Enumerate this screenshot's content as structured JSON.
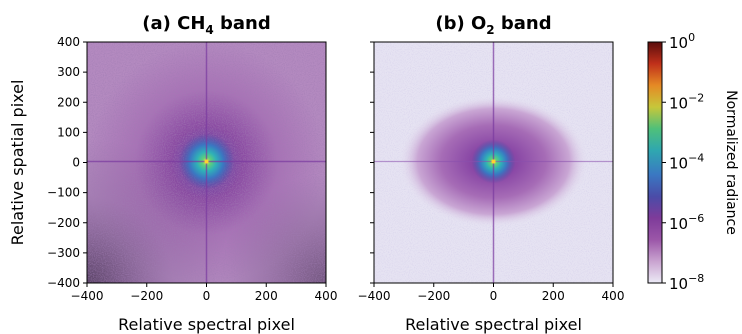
{
  "chart_data": [
    {
      "type": "heatmap",
      "title": "(a) CH4 band",
      "title_parts": {
        "prefix": "(a) CH",
        "sub": "4",
        "suffix": " band"
      },
      "xlabel": "Relative spectral pixel",
      "ylabel": "Relative spatial pixel",
      "xlim": [
        -400,
        400
      ],
      "ylim": [
        -400,
        400
      ],
      "xticks": [
        -400,
        -200,
        0,
        200,
        400
      ],
      "xtick_labels": [
        "−400",
        "−200",
        "0",
        "200",
        "400"
      ],
      "yticks": [
        400,
        300,
        200,
        100,
        0,
        -100,
        -200,
        -300,
        -400
      ],
      "ytick_labels": [
        "400",
        "300",
        "200",
        "100",
        "0",
        "−100",
        "−200",
        "−300",
        "−400"
      ],
      "colorscale": "log",
      "peak_value": 1,
      "background_value": 1e-08,
      "halo_extent": "broad, fills panel"
    },
    {
      "type": "heatmap",
      "title": "(b) O2 band",
      "title_parts": {
        "prefix": "(b) O",
        "sub": "2",
        "suffix": " band"
      },
      "xlabel": "Relative spectral pixel",
      "xlim": [
        -400,
        400
      ],
      "ylim": [
        -400,
        400
      ],
      "xticks": [
        -400,
        -200,
        0,
        200,
        400
      ],
      "xtick_labels": [
        "−400",
        "−200",
        "0",
        "200",
        "400"
      ],
      "yticks": [
        400,
        300,
        200,
        100,
        0,
        -100,
        -200,
        -300,
        -400
      ],
      "colorscale": "log",
      "peak_value": 1,
      "background_value": 1e-08,
      "halo_extent": "elliptical, ~±300 spectral, ~±200 spatial"
    }
  ],
  "colorbar": {
    "label": "Normalized radiance",
    "scale": "log",
    "range": [
      1e-08,
      1
    ],
    "ticks": [
      {
        "value": 1,
        "base": "10",
        "exp": "0"
      },
      {
        "value": 0.01,
        "base": "10",
        "exp": "−2"
      },
      {
        "value": 0.0001,
        "base": "10",
        "exp": "−4"
      },
      {
        "value": 1e-06,
        "base": "10",
        "exp": "−6"
      },
      {
        "value": 1e-08,
        "base": "10",
        "exp": "−8"
      }
    ],
    "colormap_stops": [
      "#ecebf6",
      "#c9a3d0",
      "#9b56a8",
      "#7e3b9a",
      "#4a4ca8",
      "#3a78c2",
      "#2fa7b0",
      "#4fc07a",
      "#c7c73a",
      "#e58a25",
      "#c0301a",
      "#5a0d0d"
    ]
  }
}
